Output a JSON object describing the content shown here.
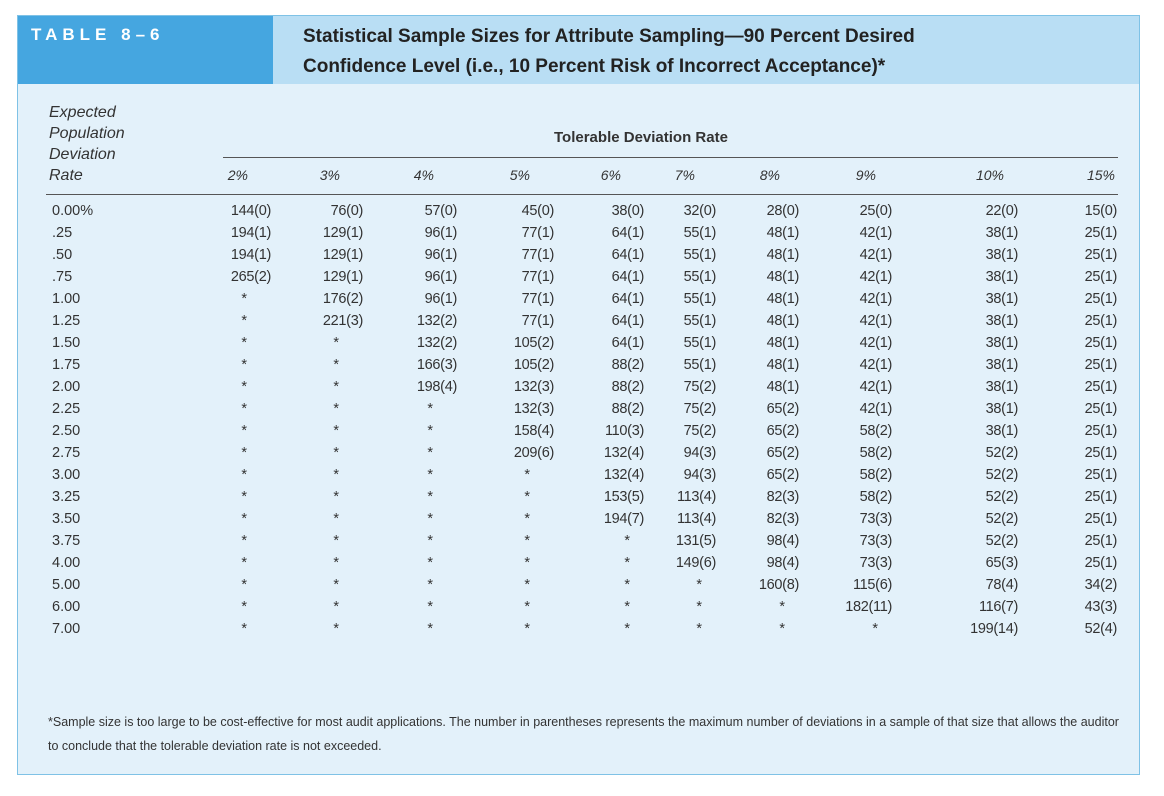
{
  "header": {
    "table_label": "TABLE 8–6",
    "title_line1": "Statistical Sample Sizes for Attribute Sampling—90 Percent Desired",
    "title_line2": "Confidence Level (i.e., 10 Percent Risk of Incorrect Acceptance)*"
  },
  "stub_header": [
    "Expected",
    "Population",
    "Deviation",
    "Rate"
  ],
  "spanner": "Tolerable Deviation Rate",
  "columns": [
    "2%",
    "3%",
    "4%",
    "5%",
    "6%",
    "7%",
    "8%",
    "9%",
    "10%",
    "15%"
  ],
  "rows": [
    {
      "rate": "0.00%",
      "values": [
        "144(0)",
        "76(0)",
        "57(0)",
        "45(0)",
        "38(0)",
        "32(0)",
        "28(0)",
        "25(0)",
        "22(0)",
        "15(0)"
      ]
    },
    {
      "rate": ".25",
      "values": [
        "194(1)",
        "129(1)",
        "96(1)",
        "77(1)",
        "64(1)",
        "55(1)",
        "48(1)",
        "42(1)",
        "38(1)",
        "25(1)"
      ]
    },
    {
      "rate": ".50",
      "values": [
        "194(1)",
        "129(1)",
        "96(1)",
        "77(1)",
        "64(1)",
        "55(1)",
        "48(1)",
        "42(1)",
        "38(1)",
        "25(1)"
      ]
    },
    {
      "rate": ".75",
      "values": [
        "265(2)",
        "129(1)",
        "96(1)",
        "77(1)",
        "64(1)",
        "55(1)",
        "48(1)",
        "42(1)",
        "38(1)",
        "25(1)"
      ]
    },
    {
      "rate": "1.00",
      "values": [
        "*",
        "176(2)",
        "96(1)",
        "77(1)",
        "64(1)",
        "55(1)",
        "48(1)",
        "42(1)",
        "38(1)",
        "25(1)"
      ]
    },
    {
      "rate": "1.25",
      "values": [
        "*",
        "221(3)",
        "132(2)",
        "77(1)",
        "64(1)",
        "55(1)",
        "48(1)",
        "42(1)",
        "38(1)",
        "25(1)"
      ]
    },
    {
      "rate": "1.50",
      "values": [
        "*",
        "*",
        "132(2)",
        "105(2)",
        "64(1)",
        "55(1)",
        "48(1)",
        "42(1)",
        "38(1)",
        "25(1)"
      ]
    },
    {
      "rate": "1.75",
      "values": [
        "*",
        "*",
        "166(3)",
        "105(2)",
        "88(2)",
        "55(1)",
        "48(1)",
        "42(1)",
        "38(1)",
        "25(1)"
      ]
    },
    {
      "rate": "2.00",
      "values": [
        "*",
        "*",
        "198(4)",
        "132(3)",
        "88(2)",
        "75(2)",
        "48(1)",
        "42(1)",
        "38(1)",
        "25(1)"
      ]
    },
    {
      "rate": "2.25",
      "values": [
        "*",
        "*",
        "*",
        "132(3)",
        "88(2)",
        "75(2)",
        "65(2)",
        "42(1)",
        "38(1)",
        "25(1)"
      ]
    },
    {
      "rate": "2.50",
      "values": [
        "*",
        "*",
        "*",
        "158(4)",
        "110(3)",
        "75(2)",
        "65(2)",
        "58(2)",
        "38(1)",
        "25(1)"
      ]
    },
    {
      "rate": "2.75",
      "values": [
        "*",
        "*",
        "*",
        "209(6)",
        "132(4)",
        "94(3)",
        "65(2)",
        "58(2)",
        "52(2)",
        "25(1)"
      ]
    },
    {
      "rate": "3.00",
      "values": [
        "*",
        "*",
        "*",
        "*",
        "132(4)",
        "94(3)",
        "65(2)",
        "58(2)",
        "52(2)",
        "25(1)"
      ]
    },
    {
      "rate": "3.25",
      "values": [
        "*",
        "*",
        "*",
        "*",
        "153(5)",
        "113(4)",
        "82(3)",
        "58(2)",
        "52(2)",
        "25(1)"
      ]
    },
    {
      "rate": "3.50",
      "values": [
        "*",
        "*",
        "*",
        "*",
        "194(7)",
        "113(4)",
        "82(3)",
        "73(3)",
        "52(2)",
        "25(1)"
      ]
    },
    {
      "rate": "3.75",
      "values": [
        "*",
        "*",
        "*",
        "*",
        "*",
        "131(5)",
        "98(4)",
        "73(3)",
        "52(2)",
        "25(1)"
      ]
    },
    {
      "rate": "4.00",
      "values": [
        "*",
        "*",
        "*",
        "*",
        "*",
        "149(6)",
        "98(4)",
        "73(3)",
        "65(3)",
        "25(1)"
      ]
    },
    {
      "rate": "5.00",
      "values": [
        "*",
        "*",
        "*",
        "*",
        "*",
        "*",
        "160(8)",
        "115(6)",
        "78(4)",
        "34(2)"
      ]
    },
    {
      "rate": "6.00",
      "values": [
        "*",
        "*",
        "*",
        "*",
        "*",
        "*",
        "*",
        "182(11)",
        "116(7)",
        "43(3)"
      ]
    },
    {
      "rate": "7.00",
      "values": [
        "*",
        "*",
        "*",
        "*",
        "*",
        "*",
        "*",
        "*",
        "199(14)",
        "52(4)"
      ]
    }
  ],
  "footnote": "*Sample size is too large to be cost-effective for most audit applications. The number in parentheses represents the maximum number of deviations in a sample of that size that allows the auditor to conclude that the tolerable deviation rate is not exceeded.",
  "colors": {
    "header_dark": "#45a6e0",
    "header_light": "#b9def4",
    "background": "#e3f1fa"
  }
}
